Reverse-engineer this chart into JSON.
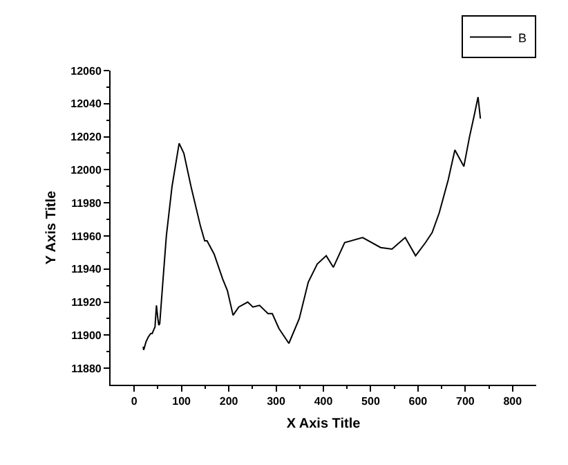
{
  "chart_data": {
    "type": "line",
    "xlabel": "X Axis Title",
    "ylabel": "Y Axis Title",
    "xlim": [
      -50,
      850
    ],
    "xticks": [
      0,
      100,
      200,
      300,
      400,
      500,
      600,
      700,
      800
    ],
    "ylim": [
      11870,
      12060
    ],
    "yticks": [
      11880,
      11900,
      11920,
      11940,
      11960,
      11980,
      12000,
      12020,
      12040,
      12060
    ],
    "grid": false,
    "legend": "top right",
    "marker": "none",
    "line_style": "solid",
    "series": [
      {
        "name": "B",
        "color": "#000000",
        "x": [
          19,
          20,
          25,
          30,
          35,
          38,
          44,
          47,
          50,
          52,
          54,
          60,
          68,
          80,
          95,
          105,
          120,
          140,
          149,
          154,
          169,
          187,
          197,
          209,
          221,
          240,
          251,
          265,
          283,
          292,
          306,
          327,
          349,
          368,
          387,
          406,
          421,
          445,
          483,
          521,
          545,
          573,
          595,
          616,
          630,
          645,
          664,
          678,
          697,
          709,
          719,
          727,
          732
        ],
        "values": [
          11893,
          11891,
          11896,
          11899,
          11901,
          11901,
          11905,
          11918,
          11910,
          11906,
          11907,
          11930,
          11960,
          11990,
          12016,
          12010,
          11990,
          11966,
          11957,
          11957,
          11949,
          11934,
          11927,
          11912,
          11917,
          11920,
          11917,
          11918,
          11913,
          11913,
          11904,
          11895,
          11910,
          11932,
          11943,
          11948,
          11941,
          11956,
          11959,
          11953,
          11952,
          11959,
          11948,
          11956,
          11962,
          11974,
          11994,
          12012,
          12002,
          12020,
          12033,
          12044,
          12031
        ]
      }
    ]
  }
}
